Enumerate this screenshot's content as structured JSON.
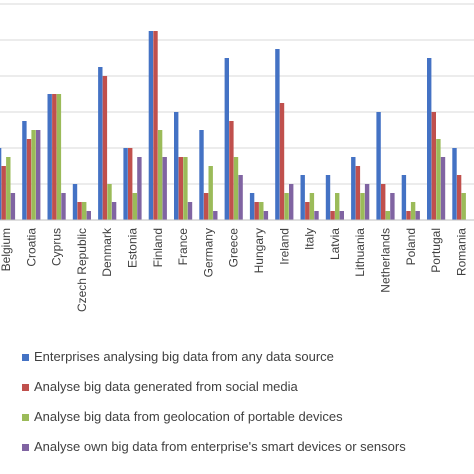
{
  "chart_data": {
    "type": "bar",
    "categories": [
      "Belgium",
      "Croatia",
      "Cyprus",
      "Czech Republic",
      "Denmark",
      "Estonia",
      "Finland",
      "France",
      "Germany",
      "Greece",
      "Hungary",
      "Ireland",
      "Italy",
      "Latvia",
      "Lithuania",
      "Netherlands",
      "Poland",
      "Portugal",
      "Romania"
    ],
    "series": [
      {
        "name": "Enterprises analysing big data from any data source",
        "color": "#4472C4",
        "values": [
          16,
          22,
          28,
          8,
          34,
          16,
          42,
          24,
          20,
          36,
          6,
          38,
          10,
          10,
          14,
          24,
          10,
          36,
          16
        ]
      },
      {
        "name": "Analyse big data generated from social media",
        "color": "#C0504D",
        "values": [
          12,
          18,
          28,
          4,
          32,
          16,
          42,
          14,
          6,
          22,
          4,
          26,
          4,
          2,
          12,
          8,
          2,
          24,
          10
        ]
      },
      {
        "name": "Analyse big data from geolocation of portable devices",
        "color": "#9BBB59",
        "values": [
          14,
          20,
          28,
          4,
          8,
          6,
          20,
          14,
          12,
          14,
          4,
          6,
          6,
          6,
          6,
          2,
          4,
          18,
          6
        ]
      },
      {
        "name": "Analyse own big data from enterprise's smart devices or sensors",
        "color": "#8064A2",
        "values": [
          6,
          20,
          6,
          2,
          4,
          14,
          14,
          4,
          2,
          10,
          2,
          8,
          2,
          2,
          8,
          6,
          2,
          14,
          0
        ]
      }
    ],
    "xlabel": "",
    "ylabel": "",
    "ylim": [
      0,
      48
    ],
    "grid": true,
    "legend_position": "bottom"
  }
}
